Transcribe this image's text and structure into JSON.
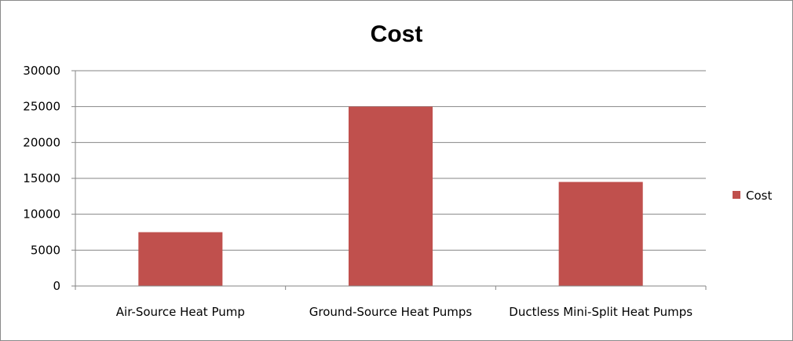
{
  "chart_data": {
    "type": "bar",
    "title": "Cost",
    "categories": [
      "Air-Source Heat Pump",
      "Ground-Source Heat Pumps",
      "Ductless Mini-Split Heat Pumps"
    ],
    "series": [
      {
        "name": "Cost",
        "values": [
          7500,
          25000,
          14500
        ],
        "color": "#C0504D"
      }
    ],
    "ylim": [
      0,
      30000
    ],
    "yticks": [
      0,
      5000,
      10000,
      15000,
      20000,
      25000,
      30000
    ],
    "grid": true,
    "legend_position": "right"
  }
}
